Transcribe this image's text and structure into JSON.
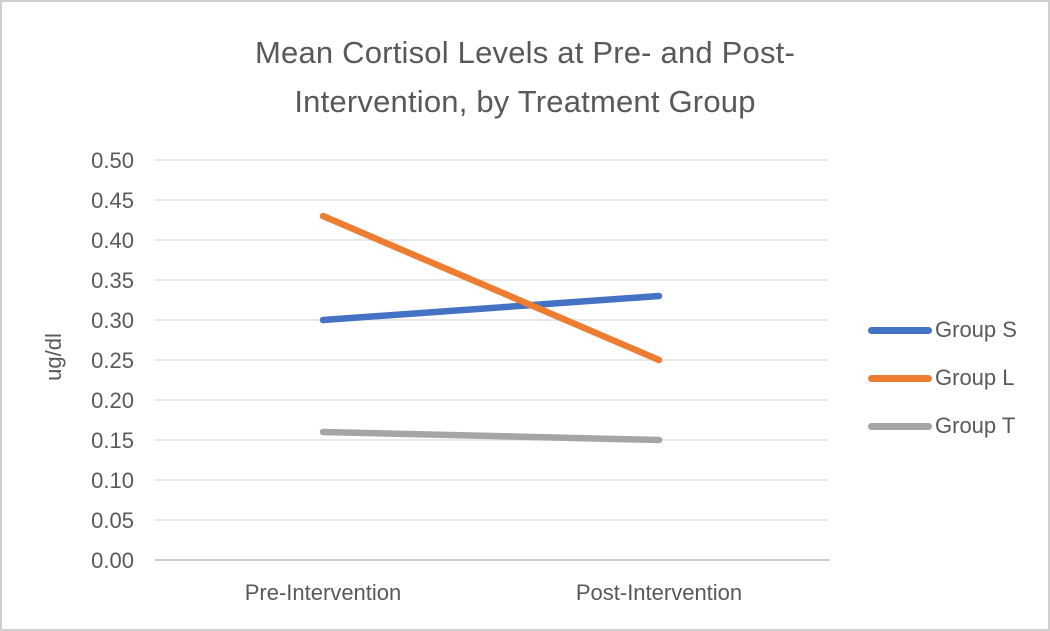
{
  "frame": {
    "background": "#FFFFFF",
    "border_color": "#CFCFCF"
  },
  "chart_data": {
    "type": "line",
    "title": "Mean Cortisol Levels at Pre- and Post-Intervention, by Treatment Group",
    "title_lines": [
      "Mean Cortisol Levels at Pre- and Post-",
      "Intervention, by Treatment Group"
    ],
    "xlabel": "",
    "ylabel": "ug/dl",
    "categories": [
      "Pre-Intervention",
      "Post-Intervention"
    ],
    "series": [
      {
        "name": "Group S",
        "values": [
          0.3,
          0.33
        ],
        "color": "#4472C4"
      },
      {
        "name": "Group L",
        "values": [
          0.43,
          0.25
        ],
        "color": "#ED7D31"
      },
      {
        "name": "Group T",
        "values": [
          0.16,
          0.15
        ],
        "color": "#A5A5A5"
      }
    ],
    "ylim": [
      0.0,
      0.5
    ],
    "yticks": [
      "0.00",
      "0.05",
      "0.10",
      "0.15",
      "0.20",
      "0.25",
      "0.30",
      "0.35",
      "0.40",
      "0.45",
      "0.50"
    ],
    "grid": true,
    "legend_position": "right",
    "colors": {
      "gridline": "#D9D9D9",
      "axis_line": "#BFBFBF",
      "text": "#595959"
    }
  }
}
